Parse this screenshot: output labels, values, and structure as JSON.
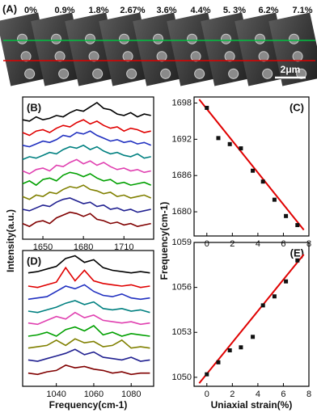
{
  "panel_a": {
    "label": "(A)",
    "strain_labels": [
      "0%",
      "0.9%",
      "1.8%",
      "2.67%",
      "3.6%",
      "4.4%",
      "5. 3%",
      "6.2%",
      "7.1%"
    ],
    "scale_bar": "2μm"
  },
  "chart_data": [
    {
      "type": "line",
      "label": "(B)",
      "y_label": "Intensity(a.u.)",
      "x": [
        1635,
        1640,
        1645,
        1650,
        1655,
        1660,
        1665,
        1670,
        1675,
        1680,
        1685,
        1690,
        1695,
        1700,
        1705,
        1710,
        1715,
        1720,
        1725,
        1730
      ],
      "xlim": [
        1635,
        1732
      ],
      "xticks": [
        1650,
        1680,
        1710
      ],
      "ylim": [
        0,
        10
      ],
      "series": [
        {
          "color": "#000000",
          "values": [
            8.4,
            8.3,
            8.6,
            8.4,
            8.5,
            8.7,
            8.6,
            8.9,
            9.1,
            9.0,
            9.3,
            9.6,
            9.2,
            9.1,
            8.8,
            8.7,
            8.9,
            8.6,
            8.8,
            8.7
          ]
        },
        {
          "color": "#e00000",
          "values": [
            7.5,
            7.3,
            7.6,
            7.7,
            7.5,
            7.8,
            8.0,
            7.9,
            8.2,
            8.4,
            8.1,
            8.3,
            8.0,
            7.8,
            7.9,
            7.6,
            7.8,
            7.7,
            7.5,
            7.6
          ]
        },
        {
          "color": "#2030c0",
          "values": [
            6.6,
            6.5,
            6.7,
            6.9,
            6.8,
            7.0,
            7.3,
            7.2,
            7.5,
            7.4,
            7.6,
            7.3,
            7.1,
            6.9,
            7.0,
            6.8,
            6.9,
            6.7,
            6.8,
            6.6
          ]
        },
        {
          "color": "#008080",
          "values": [
            5.6,
            5.8,
            5.7,
            5.9,
            6.1,
            6.0,
            6.3,
            6.5,
            6.4,
            6.6,
            6.3,
            6.5,
            6.2,
            6.0,
            6.1,
            5.9,
            5.8,
            6.0,
            5.7,
            5.8
          ]
        },
        {
          "color": "#e040b0",
          "values": [
            4.8,
            4.6,
            4.9,
            5.0,
            4.8,
            5.2,
            5.1,
            5.4,
            5.6,
            5.3,
            5.5,
            5.2,
            5.4,
            5.1,
            4.9,
            5.0,
            4.8,
            4.9,
            4.7,
            4.8
          ]
        },
        {
          "color": "#00a000",
          "values": [
            3.9,
            4.1,
            3.8,
            4.2,
            4.3,
            4.1,
            4.5,
            4.7,
            4.6,
            4.4,
            4.6,
            4.3,
            4.1,
            4.2,
            3.9,
            4.0,
            3.8,
            3.9,
            4.0,
            3.8
          ]
        },
        {
          "color": "#808000",
          "values": [
            3.0,
            2.8,
            3.1,
            3.0,
            3.3,
            3.2,
            3.5,
            3.7,
            3.6,
            3.8,
            3.5,
            3.4,
            3.2,
            3.3,
            3.0,
            3.1,
            2.9,
            3.0,
            3.1,
            2.9
          ]
        },
        {
          "color": "#202090",
          "values": [
            2.1,
            2.0,
            2.2,
            2.4,
            2.3,
            2.6,
            2.8,
            2.9,
            2.7,
            2.5,
            2.6,
            2.3,
            2.4,
            2.1,
            2.2,
            2.0,
            2.1,
            1.9,
            2.0,
            2.1
          ]
        },
        {
          "color": "#800000",
          "values": [
            1.1,
            0.9,
            1.2,
            1.3,
            1.1,
            1.5,
            1.7,
            1.9,
            1.8,
            1.6,
            1.8,
            1.4,
            1.3,
            1.1,
            1.2,
            1.0,
            1.1,
            0.9,
            1.0,
            1.1
          ]
        }
      ]
    },
    {
      "type": "scatter",
      "label": "(C)",
      "y_label": "Frequency(cm-1)",
      "x": [
        0,
        0.9,
        1.8,
        2.67,
        3.6,
        4.4,
        5.3,
        6.2,
        7.1
      ],
      "xlim": [
        -1,
        8
      ],
      "xticks": [
        0,
        2,
        4,
        6,
        8
      ],
      "ylim": [
        1676,
        1699
      ],
      "yticks": [
        1680,
        1686,
        1692,
        1698
      ],
      "series": [
        {
          "color": "#111111",
          "values": [
            1697.2,
            1692.2,
            1691.2,
            1690.5,
            1686.8,
            1685,
            1682,
            1679.3,
            1677.8
          ]
        }
      ],
      "fit": {
        "color": "#e00000",
        "x": [
          -0.6,
          7.6
        ],
        "values": [
          1698.6,
          1677
        ]
      }
    },
    {
      "type": "line",
      "label": "(D)",
      "x_label": "Frequency(cm-1)",
      "x": [
        1025,
        1030,
        1035,
        1040,
        1045,
        1050,
        1055,
        1060,
        1065,
        1070,
        1075,
        1080,
        1085,
        1090
      ],
      "xlim": [
        1022,
        1092
      ],
      "xticks": [
        1040,
        1060,
        1080
      ],
      "ylim": [
        0,
        10.3
      ],
      "series": [
        {
          "color": "#000000",
          "values": [
            8.6,
            8.7,
            8.9,
            9.1,
            9.7,
            9.9,
            9.4,
            9.6,
            9.0,
            8.8,
            8.7,
            8.6,
            8.7,
            8.6
          ]
        },
        {
          "color": "#e00000",
          "values": [
            7.6,
            7.5,
            7.7,
            7.9,
            9.0,
            8.0,
            8.8,
            8.0,
            7.8,
            7.7,
            7.6,
            7.7,
            7.5,
            7.6
          ]
        },
        {
          "color": "#2030c0",
          "values": [
            6.6,
            6.7,
            6.8,
            7.2,
            7.6,
            7.4,
            7.7,
            7.2,
            6.9,
            6.8,
            7.0,
            6.7,
            6.6,
            6.7
          ]
        },
        {
          "color": "#008080",
          "values": [
            5.7,
            5.6,
            5.8,
            6.0,
            6.3,
            6.5,
            6.2,
            6.4,
            5.9,
            5.8,
            5.9,
            5.7,
            5.8,
            5.6
          ]
        },
        {
          "color": "#e040b0",
          "values": [
            4.8,
            4.7,
            5.0,
            5.3,
            5.1,
            5.6,
            5.2,
            5.4,
            5.0,
            4.9,
            4.8,
            4.9,
            4.7,
            4.8
          ]
        },
        {
          "color": "#00a000",
          "values": [
            3.8,
            3.9,
            4.1,
            3.8,
            4.3,
            4.5,
            4.2,
            4.6,
            3.9,
            4.1,
            3.8,
            4.0,
            3.9,
            3.8
          ]
        },
        {
          "color": "#808000",
          "values": [
            2.9,
            3.0,
            3.1,
            3.5,
            3.1,
            3.6,
            3.3,
            3.4,
            3.0,
            3.1,
            3.5,
            2.9,
            3.0,
            2.9
          ]
        },
        {
          "color": "#202090",
          "values": [
            2.0,
            1.9,
            2.1,
            2.3,
            2.5,
            2.8,
            2.4,
            2.6,
            2.2,
            2.1,
            2.0,
            2.2,
            1.9,
            2.0
          ]
        },
        {
          "color": "#800000",
          "values": [
            1.0,
            0.9,
            1.1,
            1.2,
            1.6,
            1.4,
            1.5,
            1.3,
            1.2,
            1.0,
            1.1,
            0.9,
            1.0,
            1.0
          ]
        }
      ]
    },
    {
      "type": "scatter",
      "label": "(E)",
      "x_label": "Uniaxial strain(%)",
      "x": [
        0,
        0.9,
        1.8,
        2.67,
        3.6,
        4.4,
        5.3,
        6.2,
        7.1
      ],
      "xlim": [
        -1,
        8
      ],
      "xticks": [
        0,
        2,
        4,
        6,
        8
      ],
      "ylim": [
        1049.4,
        1059
      ],
      "yticks": [
        1050,
        1053,
        1056,
        1059
      ],
      "series": [
        {
          "color": "#111111",
          "values": [
            1050.2,
            1051,
            1051.8,
            1052,
            1052.7,
            1054.8,
            1055.4,
            1056.4,
            1057.8
          ]
        }
      ],
      "fit": {
        "color": "#e00000",
        "x": [
          -0.6,
          7.6
        ],
        "values": [
          1049.6,
          1058.2
        ]
      }
    }
  ]
}
